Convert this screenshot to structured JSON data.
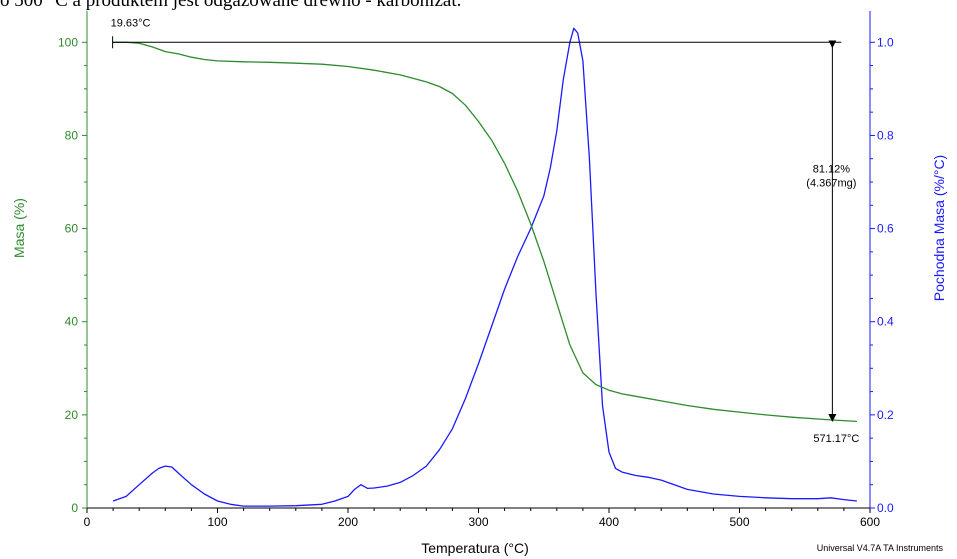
{
  "page": {
    "top_text": "o 500 °C a produktem jest odgazowane drewno - karbonizat."
  },
  "chart_data": {
    "type": "line",
    "xlabel": "Temperatura (°C)",
    "ylabel_left": "Masa (%)",
    "ylabel_right": "Pochodna Masa (%/°C)",
    "xlim": [
      0,
      600
    ],
    "ylim_left": [
      0,
      105
    ],
    "ylim_right": [
      0,
      1.05
    ],
    "x_ticks": [
      0,
      100,
      200,
      300,
      400,
      500,
      600
    ],
    "y_ticks_left": [
      0,
      20,
      40,
      60,
      80,
      100
    ],
    "y_ticks_right": [
      0.0,
      0.2,
      0.4,
      0.6,
      0.8,
      1.0
    ],
    "grid": false,
    "colors": {
      "mass": "#2e8b2e",
      "derivative": "#1a1aff",
      "axis_left": "#2e8b2e",
      "axis_right": "#1a1aff",
      "annotation": "#000000"
    },
    "series": [
      {
        "axis": "left",
        "x": [
          20,
          30,
          40,
          50,
          60,
          70,
          80,
          90,
          100,
          120,
          140,
          160,
          180,
          200,
          220,
          240,
          260,
          270,
          280,
          290,
          300,
          310,
          320,
          330,
          340,
          350,
          360,
          370,
          380,
          390,
          400,
          410,
          420,
          440,
          460,
          480,
          500,
          520,
          540,
          560,
          571,
          590
        ],
        "y": [
          100,
          100,
          99.8,
          99,
          98,
          97.5,
          96.8,
          96.3,
          96,
          95.8,
          95.7,
          95.5,
          95.3,
          94.8,
          94,
          93,
          91.5,
          90.5,
          89,
          86.5,
          83,
          79,
          74,
          68,
          61,
          53,
          44,
          35,
          29,
          26.5,
          25.3,
          24.5,
          24,
          23,
          22,
          21.2,
          20.6,
          20,
          19.5,
          19.1,
          18.9,
          18.6
        ]
      },
      {
        "axis": "right",
        "x": [
          20,
          30,
          40,
          50,
          55,
          60,
          65,
          70,
          80,
          90,
          100,
          110,
          120,
          140,
          160,
          180,
          190,
          200,
          205,
          210,
          215,
          220,
          230,
          240,
          250,
          260,
          270,
          280,
          290,
          300,
          310,
          320,
          330,
          340,
          350,
          355,
          360,
          365,
          370,
          373,
          376,
          380,
          385,
          390,
          395,
          400,
          405,
          410,
          420,
          430,
          440,
          450,
          460,
          480,
          500,
          520,
          540,
          560,
          570,
          580,
          590
        ],
        "y": [
          0.015,
          0.025,
          0.05,
          0.075,
          0.085,
          0.09,
          0.088,
          0.075,
          0.05,
          0.03,
          0.015,
          0.008,
          0.004,
          0.004,
          0.005,
          0.008,
          0.015,
          0.025,
          0.04,
          0.05,
          0.042,
          0.043,
          0.047,
          0.055,
          0.07,
          0.09,
          0.125,
          0.17,
          0.235,
          0.31,
          0.39,
          0.47,
          0.54,
          0.6,
          0.67,
          0.73,
          0.81,
          0.92,
          1.0,
          1.03,
          1.02,
          0.96,
          0.75,
          0.46,
          0.22,
          0.12,
          0.085,
          0.077,
          0.07,
          0.066,
          0.06,
          0.05,
          0.04,
          0.03,
          0.025,
          0.022,
          0.02,
          0.02,
          0.022,
          0.018,
          0.015
        ]
      }
    ],
    "annotations": {
      "start_label": "19.63°C",
      "end_label": "571.17°C",
      "delta_label": "81.12%",
      "delta_mg": "(4.367mg)"
    }
  },
  "footer": {
    "credit": "Universal V4.7A TA Instruments"
  }
}
